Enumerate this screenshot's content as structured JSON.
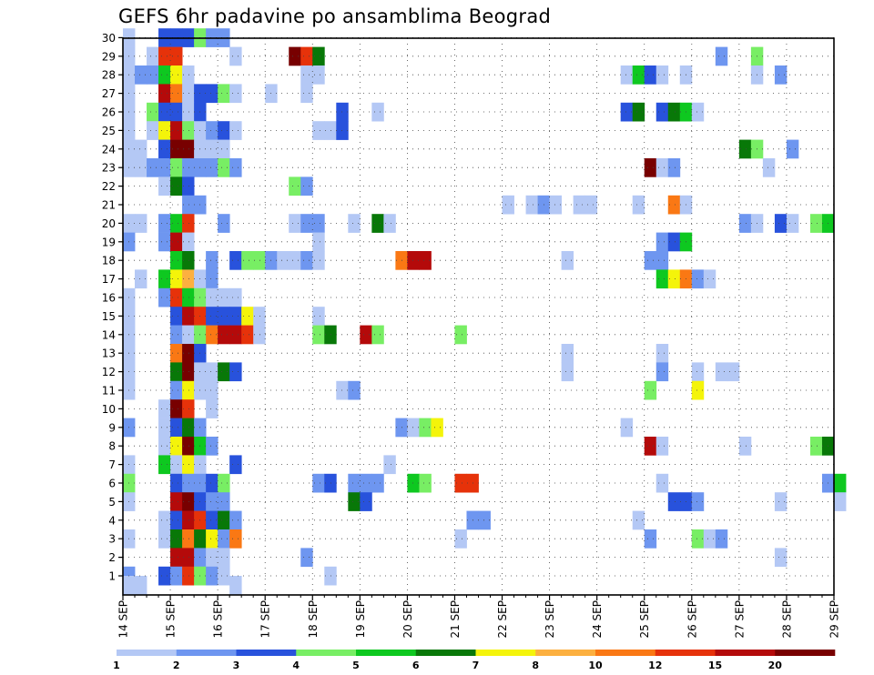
{
  "chart_data": {
    "type": "heatmap",
    "title": "GEFS 6hr padavine po ansamblima Beograd",
    "y_label": "",
    "x_label": "",
    "members": [
      1,
      2,
      3,
      4,
      5,
      6,
      7,
      8,
      9,
      10,
      11,
      12,
      13,
      14,
      15,
      16,
      17,
      18,
      19,
      20,
      21,
      22,
      23,
      24,
      25,
      26,
      27,
      28,
      29,
      30
    ],
    "x_ticks": [
      "14 SEP",
      "15 SEP",
      "16 SEP",
      "17 SEP",
      "18 SEP",
      "19 SEP",
      "20 SEP",
      "21 SEP",
      "22 SEP",
      "23 SEP",
      "24 SEP",
      "25 SEP",
      "26 SEP",
      "27 SEP",
      "28 SEP",
      "29 SEP"
    ],
    "time_steps_per_day": 4,
    "n_steps": 61,
    "grid": "dotted",
    "colorbar": {
      "levels": [
        "1",
        "2",
        "3",
        "4",
        "5",
        "6",
        "7",
        "8",
        "10",
        "12",
        "15",
        "20"
      ],
      "colors": [
        "#b4c8f5",
        "#6e96f0",
        "#2852dc",
        "#78ee64",
        "#0ec820",
        "#087808",
        "#f4f40a",
        "#fcb040",
        "#fa7814",
        "#e6320a",
        "#b40a0a",
        "#780000"
      ]
    },
    "cells_note": "each cell: [member, time_step_index (0 = 14 SEP 00z, 6-hourly), color_class_index 0-11 into colorbar.colors]",
    "cells": [
      [
        30,
        0,
        0
      ],
      [
        30,
        3,
        2
      ],
      [
        30,
        4,
        2
      ],
      [
        30,
        5,
        2
      ],
      [
        30,
        6,
        3
      ],
      [
        30,
        7,
        1
      ],
      [
        30,
        8,
        1
      ],
      [
        29,
        0,
        0
      ],
      [
        29,
        2,
        0
      ],
      [
        29,
        3,
        9
      ],
      [
        29,
        4,
        9
      ],
      [
        29,
        9,
        0
      ],
      [
        29,
        14,
        11
      ],
      [
        29,
        15,
        9
      ],
      [
        29,
        16,
        5
      ],
      [
        29,
        50,
        1
      ],
      [
        29,
        53,
        3
      ],
      [
        28,
        0,
        0
      ],
      [
        28,
        1,
        1
      ],
      [
        28,
        2,
        1
      ],
      [
        28,
        3,
        4
      ],
      [
        28,
        4,
        6
      ],
      [
        28,
        5,
        0
      ],
      [
        28,
        15,
        0
      ],
      [
        28,
        16,
        0
      ],
      [
        28,
        42,
        0
      ],
      [
        28,
        43,
        4
      ],
      [
        28,
        44,
        2
      ],
      [
        28,
        45,
        0
      ],
      [
        28,
        47,
        0
      ],
      [
        28,
        53,
        0
      ],
      [
        28,
        55,
        1
      ],
      [
        27,
        0,
        0
      ],
      [
        27,
        3,
        10
      ],
      [
        27,
        4,
        8
      ],
      [
        27,
        5,
        0
      ],
      [
        27,
        6,
        2
      ],
      [
        27,
        7,
        2
      ],
      [
        27,
        8,
        3
      ],
      [
        27,
        9,
        0
      ],
      [
        27,
        12,
        0
      ],
      [
        27,
        15,
        0
      ],
      [
        26,
        0,
        0
      ],
      [
        26,
        2,
        3
      ],
      [
        26,
        3,
        2
      ],
      [
        26,
        4,
        2
      ],
      [
        26,
        5,
        0
      ],
      [
        26,
        6,
        2
      ],
      [
        26,
        18,
        2
      ],
      [
        26,
        21,
        0
      ],
      [
        26,
        42,
        2
      ],
      [
        26,
        43,
        5
      ],
      [
        26,
        45,
        2
      ],
      [
        26,
        46,
        5
      ],
      [
        26,
        47,
        4
      ],
      [
        26,
        48,
        0
      ],
      [
        25,
        0,
        0
      ],
      [
        25,
        2,
        0
      ],
      [
        25,
        3,
        6
      ],
      [
        25,
        4,
        10
      ],
      [
        25,
        5,
        3
      ],
      [
        25,
        6,
        0
      ],
      [
        25,
        7,
        1
      ],
      [
        25,
        8,
        2
      ],
      [
        25,
        9,
        0
      ],
      [
        25,
        16,
        0
      ],
      [
        25,
        17,
        0
      ],
      [
        25,
        18,
        2
      ],
      [
        24,
        0,
        0
      ],
      [
        24,
        1,
        0
      ],
      [
        24,
        3,
        2
      ],
      [
        24,
        4,
        11
      ],
      [
        24,
        5,
        11
      ],
      [
        24,
        6,
        0
      ],
      [
        24,
        7,
        0
      ],
      [
        24,
        8,
        0
      ],
      [
        24,
        52,
        5
      ],
      [
        24,
        53,
        3
      ],
      [
        24,
        56,
        1
      ],
      [
        23,
        0,
        0
      ],
      [
        23,
        1,
        0
      ],
      [
        23,
        2,
        1
      ],
      [
        23,
        3,
        1
      ],
      [
        23,
        4,
        3
      ],
      [
        23,
        5,
        1
      ],
      [
        23,
        6,
        1
      ],
      [
        23,
        7,
        1
      ],
      [
        23,
        8,
        3
      ],
      [
        23,
        9,
        1
      ],
      [
        23,
        44,
        11
      ],
      [
        23,
        45,
        0
      ],
      [
        23,
        46,
        1
      ],
      [
        23,
        54,
        0
      ],
      [
        22,
        3,
        0
      ],
      [
        22,
        4,
        5
      ],
      [
        22,
        5,
        2
      ],
      [
        22,
        14,
        3
      ],
      [
        22,
        15,
        1
      ],
      [
        21,
        5,
        1
      ],
      [
        21,
        6,
        1
      ],
      [
        21,
        32,
        0
      ],
      [
        21,
        34,
        0
      ],
      [
        21,
        35,
        1
      ],
      [
        21,
        36,
        0
      ],
      [
        21,
        38,
        0
      ],
      [
        21,
        39,
        0
      ],
      [
        21,
        43,
        0
      ],
      [
        21,
        46,
        8
      ],
      [
        21,
        47,
        0
      ],
      [
        20,
        0,
        0
      ],
      [
        20,
        1,
        0
      ],
      [
        20,
        3,
        1
      ],
      [
        20,
        4,
        4
      ],
      [
        20,
        5,
        9
      ],
      [
        20,
        8,
        1
      ],
      [
        20,
        14,
        0
      ],
      [
        20,
        15,
        1
      ],
      [
        20,
        16,
        1
      ],
      [
        20,
        19,
        0
      ],
      [
        20,
        21,
        5
      ],
      [
        20,
        22,
        0
      ],
      [
        20,
        52,
        1
      ],
      [
        20,
        53,
        0
      ],
      [
        20,
        55,
        2
      ],
      [
        20,
        56,
        0
      ],
      [
        20,
        58,
        3
      ],
      [
        20,
        59,
        4
      ],
      [
        19,
        0,
        1
      ],
      [
        19,
        3,
        1
      ],
      [
        19,
        4,
        10
      ],
      [
        19,
        5,
        0
      ],
      [
        19,
        16,
        0
      ],
      [
        19,
        45,
        1
      ],
      [
        19,
        46,
        2
      ],
      [
        19,
        47,
        4
      ],
      [
        18,
        4,
        4
      ],
      [
        18,
        5,
        5
      ],
      [
        18,
        7,
        1
      ],
      [
        18,
        9,
        2
      ],
      [
        18,
        10,
        3
      ],
      [
        18,
        11,
        3
      ],
      [
        18,
        12,
        1
      ],
      [
        18,
        13,
        0
      ],
      [
        18,
        14,
        0
      ],
      [
        18,
        15,
        1
      ],
      [
        18,
        16,
        0
      ],
      [
        18,
        23,
        8
      ],
      [
        18,
        24,
        10
      ],
      [
        18,
        25,
        10
      ],
      [
        18,
        37,
        0
      ],
      [
        18,
        44,
        1
      ],
      [
        18,
        45,
        1
      ],
      [
        17,
        1,
        0
      ],
      [
        17,
        3,
        4
      ],
      [
        17,
        4,
        6
      ],
      [
        17,
        5,
        7
      ],
      [
        17,
        6,
        0
      ],
      [
        17,
        7,
        1
      ],
      [
        17,
        45,
        4
      ],
      [
        17,
        46,
        6
      ],
      [
        17,
        47,
        8
      ],
      [
        17,
        48,
        1
      ],
      [
        17,
        49,
        0
      ],
      [
        16,
        0,
        0
      ],
      [
        16,
        3,
        1
      ],
      [
        16,
        4,
        9
      ],
      [
        16,
        5,
        4
      ],
      [
        16,
        6,
        3
      ],
      [
        16,
        7,
        0
      ],
      [
        16,
        8,
        0
      ],
      [
        16,
        9,
        0
      ],
      [
        15,
        0,
        0
      ],
      [
        15,
        4,
        2
      ],
      [
        15,
        5,
        10
      ],
      [
        15,
        6,
        9
      ],
      [
        15,
        7,
        2
      ],
      [
        15,
        8,
        2
      ],
      [
        15,
        9,
        2
      ],
      [
        15,
        10,
        6
      ],
      [
        15,
        11,
        0
      ],
      [
        15,
        16,
        0
      ],
      [
        14,
        0,
        0
      ],
      [
        14,
        4,
        1
      ],
      [
        14,
        5,
        0
      ],
      [
        14,
        6,
        3
      ],
      [
        14,
        7,
        8
      ],
      [
        14,
        8,
        10
      ],
      [
        14,
        9,
        10
      ],
      [
        14,
        10,
        9
      ],
      [
        14,
        11,
        0
      ],
      [
        14,
        16,
        3
      ],
      [
        14,
        17,
        5
      ],
      [
        14,
        20,
        10
      ],
      [
        14,
        21,
        3
      ],
      [
        14,
        28,
        3
      ],
      [
        13,
        0,
        0
      ],
      [
        13,
        4,
        8
      ],
      [
        13,
        5,
        11
      ],
      [
        13,
        6,
        2
      ],
      [
        13,
        37,
        0
      ],
      [
        13,
        45,
        0
      ],
      [
        12,
        0,
        0
      ],
      [
        12,
        4,
        5
      ],
      [
        12,
        5,
        11
      ],
      [
        12,
        6,
        0
      ],
      [
        12,
        7,
        0
      ],
      [
        12,
        8,
        5
      ],
      [
        12,
        9,
        2
      ],
      [
        12,
        37,
        0
      ],
      [
        12,
        45,
        1
      ],
      [
        12,
        48,
        0
      ],
      [
        12,
        50,
        0
      ],
      [
        12,
        51,
        0
      ],
      [
        11,
        0,
        0
      ],
      [
        11,
        4,
        1
      ],
      [
        11,
        5,
        6
      ],
      [
        11,
        6,
        0
      ],
      [
        11,
        7,
        0
      ],
      [
        11,
        18,
        0
      ],
      [
        11,
        19,
        1
      ],
      [
        11,
        44,
        3
      ],
      [
        11,
        48,
        6
      ],
      [
        10,
        3,
        0
      ],
      [
        10,
        4,
        11
      ],
      [
        10,
        5,
        9
      ],
      [
        10,
        7,
        0
      ],
      [
        9,
        0,
        1
      ],
      [
        9,
        3,
        0
      ],
      [
        9,
        4,
        2
      ],
      [
        9,
        5,
        5
      ],
      [
        9,
        6,
        1
      ],
      [
        9,
        23,
        1
      ],
      [
        9,
        24,
        0
      ],
      [
        9,
        25,
        3
      ],
      [
        9,
        26,
        6
      ],
      [
        9,
        42,
        0
      ],
      [
        8,
        3,
        0
      ],
      [
        8,
        4,
        6
      ],
      [
        8,
        5,
        11
      ],
      [
        8,
        6,
        4
      ],
      [
        8,
        7,
        1
      ],
      [
        8,
        44,
        10
      ],
      [
        8,
        45,
        0
      ],
      [
        8,
        52,
        0
      ],
      [
        8,
        58,
        3
      ],
      [
        8,
        59,
        5
      ],
      [
        7,
        0,
        0
      ],
      [
        7,
        3,
        4
      ],
      [
        7,
        4,
        0
      ],
      [
        7,
        5,
        6
      ],
      [
        7,
        6,
        0
      ],
      [
        7,
        9,
        2
      ],
      [
        7,
        22,
        0
      ],
      [
        6,
        0,
        3
      ],
      [
        6,
        4,
        2
      ],
      [
        6,
        5,
        1
      ],
      [
        6,
        6,
        1
      ],
      [
        6,
        7,
        2
      ],
      [
        6,
        8,
        3
      ],
      [
        6,
        16,
        1
      ],
      [
        6,
        17,
        2
      ],
      [
        6,
        19,
        1
      ],
      [
        6,
        20,
        1
      ],
      [
        6,
        21,
        1
      ],
      [
        6,
        24,
        4
      ],
      [
        6,
        25,
        3
      ],
      [
        6,
        28,
        9
      ],
      [
        6,
        29,
        9
      ],
      [
        6,
        45,
        0
      ],
      [
        6,
        59,
        1
      ],
      [
        6,
        60,
        4
      ],
      [
        5,
        0,
        0
      ],
      [
        5,
        4,
        10
      ],
      [
        5,
        5,
        11
      ],
      [
        5,
        6,
        2
      ],
      [
        5,
        7,
        1
      ],
      [
        5,
        8,
        1
      ],
      [
        5,
        19,
        5
      ],
      [
        5,
        20,
        2
      ],
      [
        5,
        46,
        2
      ],
      [
        5,
        47,
        2
      ],
      [
        5,
        48,
        1
      ],
      [
        5,
        55,
        0
      ],
      [
        5,
        60,
        0
      ],
      [
        4,
        3,
        0
      ],
      [
        4,
        4,
        2
      ],
      [
        4,
        5,
        10
      ],
      [
        4,
        6,
        9
      ],
      [
        4,
        7,
        2
      ],
      [
        4,
        8,
        5
      ],
      [
        4,
        9,
        1
      ],
      [
        4,
        29,
        1
      ],
      [
        4,
        30,
        1
      ],
      [
        4,
        43,
        0
      ],
      [
        3,
        0,
        0
      ],
      [
        3,
        3,
        0
      ],
      [
        3,
        4,
        5
      ],
      [
        3,
        5,
        8
      ],
      [
        3,
        6,
        5
      ],
      [
        3,
        7,
        6
      ],
      [
        3,
        8,
        1
      ],
      [
        3,
        9,
        8
      ],
      [
        3,
        28,
        0
      ],
      [
        3,
        44,
        1
      ],
      [
        3,
        48,
        3
      ],
      [
        3,
        49,
        0
      ],
      [
        3,
        50,
        1
      ],
      [
        2,
        4,
        10
      ],
      [
        2,
        5,
        10
      ],
      [
        2,
        6,
        1
      ],
      [
        2,
        7,
        0
      ],
      [
        2,
        8,
        0
      ],
      [
        2,
        15,
        1
      ],
      [
        2,
        55,
        0
      ],
      [
        1,
        0,
        1
      ],
      [
        1,
        3,
        2
      ],
      [
        1,
        4,
        1
      ],
      [
        1,
        5,
        9
      ],
      [
        1,
        6,
        3
      ],
      [
        1,
        7,
        1
      ],
      [
        1,
        8,
        0
      ],
      [
        1,
        17,
        0
      ],
      [
        0.5,
        0,
        0
      ],
      [
        0.5,
        1,
        0
      ],
      [
        0.5,
        9,
        0
      ]
    ]
  }
}
